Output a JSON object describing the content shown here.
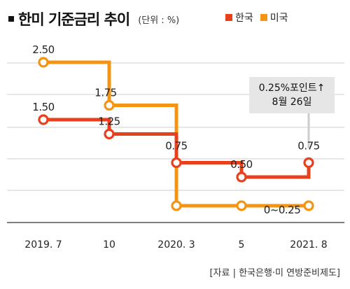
{
  "header": {
    "title": "한미 기준금리 추이",
    "unit": "(단위 : %)"
  },
  "legend": [
    {
      "name": "한국",
      "color": "#e8401c"
    },
    {
      "name": "미국",
      "color": "#f39512"
    }
  ],
  "annotation": {
    "line1": "0.25%포인트↑",
    "line2": "8월 26일"
  },
  "source": "[자료 | 한국은행·미 연방준비제도]",
  "chart_data": {
    "type": "line",
    "step": true,
    "categories": [
      "2019. 7",
      "10",
      "2020. 3",
      "5",
      "2021. 8"
    ],
    "ylim": [
      0,
      3.0
    ],
    "grid": true,
    "legend_placement": "top-right",
    "series": [
      {
        "name": "미국",
        "color": "#f39512",
        "points": [
          {
            "x": "2019. 7",
            "y": 2.5,
            "label": "2.50"
          },
          {
            "x": "10",
            "y": 1.75,
            "label": "1.75"
          },
          {
            "x": "2020. 3",
            "y": 0.0,
            "label": ""
          },
          {
            "x": "5",
            "y": 0.0,
            "label": ""
          },
          {
            "x": "2021. 8",
            "y": 0.0,
            "label": "0~0.25"
          }
        ]
      },
      {
        "name": "한국",
        "color": "#e8401c",
        "points": [
          {
            "x": "2019. 7",
            "y": 1.5,
            "label": "1.50"
          },
          {
            "x": "10",
            "y": 1.25,
            "label": "1.25"
          },
          {
            "x": "2020. 3",
            "y": 0.75,
            "label": "0.75"
          },
          {
            "x": "5",
            "y": 0.5,
            "label": "0.50"
          },
          {
            "x": "2021. 8",
            "y": 0.75,
            "label": "0.75"
          }
        ]
      }
    ]
  }
}
